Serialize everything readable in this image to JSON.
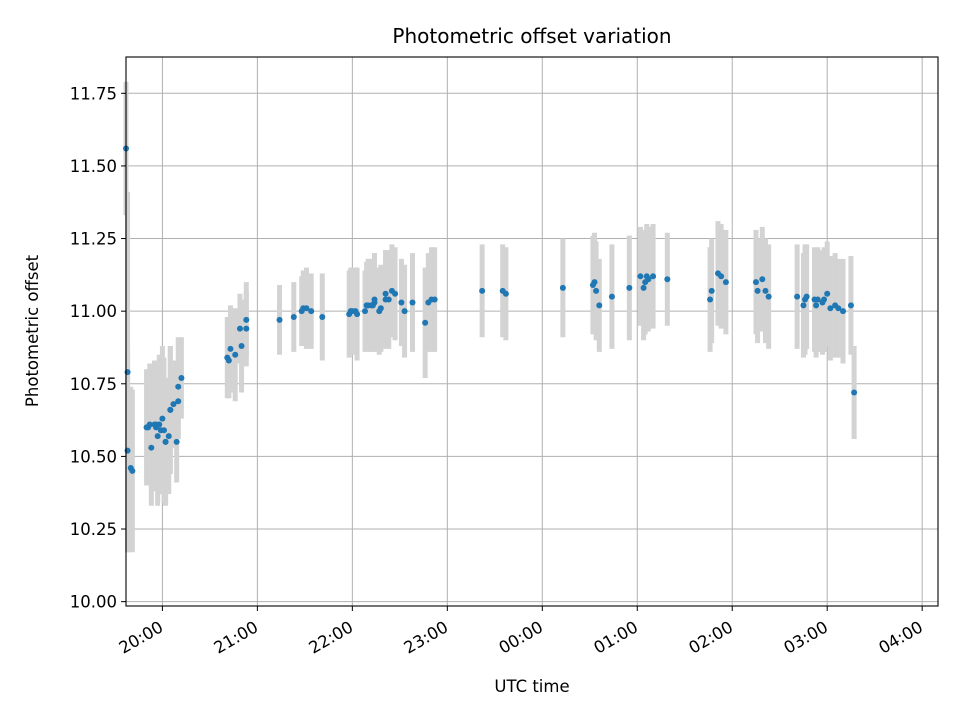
{
  "chart_data": {
    "type": "scatter",
    "title": "Photometric offset variation",
    "xlabel": "UTC time",
    "ylabel": "Photometric offset",
    "xlim": [
      "19:37",
      "04:10"
    ],
    "ylim": [
      9.985,
      11.875
    ],
    "grid": true,
    "x_ticks": [
      "20:00",
      "21:00",
      "22:00",
      "23:00",
      "00:00",
      "01:00",
      "02:00",
      "03:00",
      "04:00"
    ],
    "y_ticks": [
      "10.00",
      "10.25",
      "10.50",
      "10.75",
      "11.00",
      "11.25",
      "11.50",
      "11.75"
    ],
    "colors": {
      "marker": "#1f77b4",
      "errorbar": "#d3d3d3",
      "grid": "#b0b0b0"
    },
    "series": [
      {
        "x": [
          "19:37",
          "19:38",
          "19:38",
          "19:40",
          "19:41",
          "19:50",
          "19:51",
          "19:52",
          "19:53",
          "19:55",
          "19:56",
          "19:56",
          "19:57",
          "19:58",
          "19:59",
          "20:00",
          "20:01",
          "20:02",
          "20:02",
          "20:04",
          "20:05",
          "20:05",
          "20:07",
          "20:09",
          "20:10",
          "20:10",
          "20:12",
          "20:41",
          "20:42",
          "20:43",
          "20:46",
          "20:49",
          "20:50",
          "20:53",
          "20:53",
          "21:14",
          "21:23",
          "21:28",
          "21:29",
          "21:31",
          "21:34",
          "21:41",
          "21:58",
          "21:59",
          "22:00",
          "22:02",
          "22:03",
          "22:08",
          "22:09",
          "22:10",
          "22:12",
          "22:13",
          "22:14",
          "22:14",
          "22:17",
          "22:18",
          "22:21",
          "22:21",
          "22:23",
          "22:25",
          "22:27",
          "22:31",
          "22:33",
          "22:38",
          "22:46",
          "22:48",
          "22:50",
          "22:52",
          "23:22",
          "23:35",
          "23:37",
          "00:13",
          "00:32",
          "00:33",
          "00:34",
          "00:36",
          "00:44",
          "00:55",
          "01:02",
          "01:04",
          "01:05",
          "01:06",
          "01:07",
          "01:10",
          "01:19",
          "01:46",
          "01:47",
          "01:51",
          "01:53",
          "01:56",
          "02:15",
          "02:16",
          "02:19",
          "02:21",
          "02:23",
          "02:41",
          "02:45",
          "02:46",
          "02:47",
          "02:52",
          "02:53",
          "02:54",
          "02:57",
          "02:58",
          "03:00",
          "03:02",
          "03:05",
          "03:07",
          "03:10",
          "03:15",
          "03:17"
        ],
        "y": [
          11.56,
          10.79,
          10.52,
          10.46,
          10.45,
          10.6,
          10.6,
          10.61,
          10.53,
          10.61,
          10.6,
          10.61,
          10.57,
          10.61,
          10.59,
          10.63,
          10.59,
          10.55,
          10.55,
          10.57,
          10.66,
          10.66,
          10.68,
          10.55,
          10.69,
          10.74,
          10.77,
          10.84,
          10.83,
          10.87,
          10.85,
          10.94,
          10.88,
          10.97,
          10.94,
          10.97,
          10.98,
          11.0,
          11.01,
          11.01,
          11.0,
          10.98,
          10.99,
          11.0,
          11.0,
          11.0,
          10.99,
          11.0,
          11.02,
          11.02,
          11.02,
          11.02,
          11.04,
          11.03,
          11.0,
          11.01,
          11.04,
          11.06,
          11.04,
          11.07,
          11.06,
          11.03,
          11.0,
          11.03,
          10.96,
          11.03,
          11.04,
          11.04,
          11.07,
          11.07,
          11.06,
          11.08,
          11.09,
          11.1,
          11.07,
          11.02,
          11.05,
          11.08,
          11.12,
          11.08,
          11.1,
          11.12,
          11.11,
          11.12,
          11.11,
          11.04,
          11.07,
          11.13,
          11.12,
          11.1,
          11.1,
          11.07,
          11.11,
          11.07,
          11.05,
          11.05,
          11.02,
          11.04,
          11.05,
          11.04,
          11.02,
          11.04,
          11.03,
          11.04,
          11.06,
          11.01,
          11.02,
          11.01,
          11.0,
          11.02,
          10.72
        ],
        "err": [
          0.23,
          0.62,
          0.35,
          0.28,
          0.28,
          0.2,
          0.2,
          0.21,
          0.2,
          0.22,
          0.22,
          0.22,
          0.24,
          0.24,
          0.22,
          0.25,
          0.25,
          0.22,
          0.21,
          0.2,
          0.22,
          0.22,
          0.15,
          0.14,
          0.13,
          0.17,
          0.14,
          0.14,
          0.13,
          0.15,
          0.16,
          0.12,
          0.16,
          0.13,
          0.13,
          0.12,
          0.12,
          0.12,
          0.13,
          0.14,
          0.13,
          0.15,
          0.15,
          0.15,
          0.15,
          0.15,
          0.16,
          0.14,
          0.15,
          0.16,
          0.16,
          0.16,
          0.16,
          0.17,
          0.15,
          0.15,
          0.17,
          0.15,
          0.17,
          0.16,
          0.16,
          0.15,
          0.16,
          0.17,
          0.19,
          0.17,
          0.18,
          0.18,
          0.16,
          0.16,
          0.16,
          0.17,
          0.17,
          0.17,
          0.17,
          0.16,
          0.18,
          0.18,
          0.17,
          0.18,
          0.18,
          0.18,
          0.18,
          0.18,
          0.16,
          0.18,
          0.18,
          0.18,
          0.18,
          0.18,
          0.18,
          0.18,
          0.18,
          0.18,
          0.18,
          0.18,
          0.18,
          0.19,
          0.18,
          0.18,
          0.18,
          0.18,
          0.18,
          0.18,
          0.18,
          0.18,
          0.18,
          0.17,
          0.18,
          0.17,
          0.16
        ]
      }
    ]
  }
}
